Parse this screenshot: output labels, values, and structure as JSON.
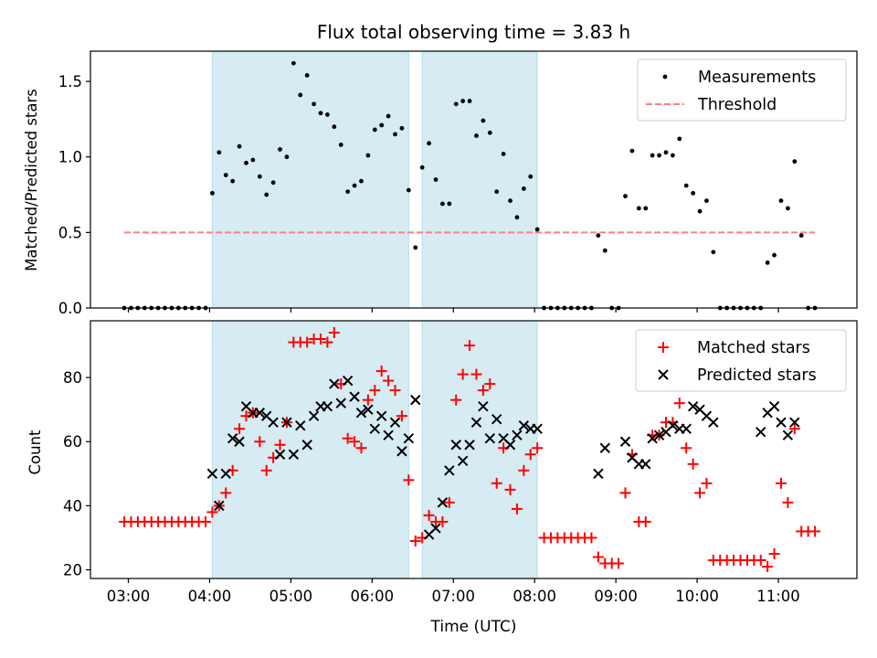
{
  "chart_data": [
    {
      "type": "scatter",
      "title": "Flux total observing time = 3.83 h",
      "xlabel": "",
      "ylabel": "Matched/Predicted stars",
      "xlim": [
        "02:32",
        "11:58"
      ],
      "ylim": [
        0,
        1.7
      ],
      "yticks": [
        "0.0",
        "0.5",
        "1.0",
        "1.5"
      ],
      "grid": false,
      "legend": "top-right",
      "shaded_intervals": [
        [
          "04:02",
          "06:27"
        ],
        [
          "06:37",
          "08:02"
        ]
      ],
      "threshold": {
        "name": "Threshold",
        "value": 0.5,
        "x_range": [
          "02:57",
          "11:27"
        ],
        "color": "#ff7f7f"
      },
      "series": [
        {
          "name": "Measurements",
          "color": "#000000",
          "x": [
            "02:57",
            "03:02",
            "03:07",
            "03:12",
            "03:17",
            "03:22",
            "03:27",
            "03:32",
            "03:37",
            "03:42",
            "03:47",
            "03:52",
            "03:57",
            "04:02",
            "04:07",
            "04:12",
            "04:17",
            "04:22",
            "04:27",
            "04:32",
            "04:37",
            "04:42",
            "04:47",
            "04:52",
            "04:57",
            "05:02",
            "05:07",
            "05:12",
            "05:17",
            "05:22",
            "05:27",
            "05:32",
            "05:37",
            "05:42",
            "05:47",
            "05:52",
            "05:57",
            "06:02",
            "06:07",
            "06:12",
            "06:17",
            "06:22",
            "06:27",
            "06:32",
            "06:37",
            "06:42",
            "06:47",
            "06:52",
            "06:57",
            "07:02",
            "07:07",
            "07:12",
            "07:17",
            "07:22",
            "07:27",
            "07:32",
            "07:37",
            "07:42",
            "07:47",
            "07:52",
            "07:57",
            "08:02",
            "08:07",
            "08:12",
            "08:17",
            "08:22",
            "08:27",
            "08:32",
            "08:37",
            "08:42",
            "08:47",
            "08:52",
            "08:57",
            "09:02",
            "09:07",
            "09:12",
            "09:17",
            "09:22",
            "09:27",
            "09:32",
            "09:37",
            "09:42",
            "09:47",
            "09:52",
            "09:57",
            "10:02",
            "10:07",
            "10:12",
            "10:17",
            "10:22",
            "10:27",
            "10:32",
            "10:37",
            "10:42",
            "10:47",
            "10:52",
            "10:57",
            "11:02",
            "11:07",
            "11:12",
            "11:17",
            "11:22",
            "11:27"
          ],
          "y": [
            0,
            0,
            0,
            0,
            0,
            0,
            0,
            0,
            0,
            0,
            0,
            0,
            0,
            0.76,
            1.03,
            0.88,
            0.84,
            1.07,
            0.96,
            0.98,
            0.87,
            0.75,
            0.83,
            1.05,
            1.0,
            1.62,
            1.41,
            1.54,
            1.35,
            1.29,
            1.28,
            1.2,
            1.08,
            0.77,
            0.81,
            0.84,
            1.01,
            1.18,
            1.21,
            1.27,
            1.15,
            1.19,
            0.78,
            0.4,
            0.93,
            1.09,
            0.85,
            0.69,
            0.69,
            1.35,
            1.37,
            1.37,
            1.14,
            1.24,
            1.16,
            0.77,
            1.02,
            0.71,
            0.6,
            0.79,
            0.87,
            0.52,
            0,
            0,
            0,
            0,
            0,
            0,
            0,
            0,
            0.48,
            0.38,
            0,
            0,
            0.74,
            1.04,
            0.66,
            0.66,
            1.01,
            1.01,
            1.03,
            1.01,
            1.12,
            0.81,
            0.76,
            0.64,
            0.71,
            0.37,
            0,
            0,
            0,
            0,
            0,
            0,
            0,
            0.3,
            0.35,
            0.71,
            0.66,
            0.97,
            0.48,
            0,
            0
          ]
        }
      ]
    },
    {
      "type": "scatter",
      "title": "",
      "xlabel": "Time (UTC)",
      "ylabel": "Count",
      "xlim": [
        "02:32",
        "11:58"
      ],
      "ylim": [
        17.3,
        97.7
      ],
      "xticks": [
        "03:00",
        "04:00",
        "05:00",
        "06:00",
        "07:00",
        "08:00",
        "09:00",
        "10:00",
        "11:00"
      ],
      "yticks": [
        "20",
        "40",
        "60",
        "80"
      ],
      "grid": false,
      "legend": "top-right",
      "shaded_intervals": [
        [
          "04:02",
          "06:27"
        ],
        [
          "06:37",
          "08:02"
        ]
      ],
      "series": [
        {
          "name": "Matched stars",
          "marker": "+",
          "color": "#ff0000",
          "x": [
            "02:57",
            "03:02",
            "03:07",
            "03:12",
            "03:17",
            "03:22",
            "03:27",
            "03:32",
            "03:37",
            "03:42",
            "03:47",
            "03:52",
            "03:57",
            "04:02",
            "04:07",
            "04:12",
            "04:17",
            "04:22",
            "04:27",
            "04:32",
            "04:37",
            "04:42",
            "04:47",
            "04:52",
            "04:57",
            "05:02",
            "05:07",
            "05:12",
            "05:17",
            "05:22",
            "05:27",
            "05:32",
            "05:37",
            "05:42",
            "05:47",
            "05:52",
            "05:57",
            "06:02",
            "06:07",
            "06:12",
            "06:17",
            "06:22",
            "06:27",
            "06:32",
            "06:37",
            "06:42",
            "06:47",
            "06:52",
            "06:57",
            "07:02",
            "07:07",
            "07:12",
            "07:17",
            "07:22",
            "07:27",
            "07:32",
            "07:37",
            "07:42",
            "07:47",
            "07:52",
            "07:57",
            "08:02",
            "08:07",
            "08:12",
            "08:17",
            "08:22",
            "08:27",
            "08:32",
            "08:37",
            "08:42",
            "08:47",
            "08:52",
            "08:57",
            "09:02",
            "09:07",
            "09:12",
            "09:17",
            "09:22",
            "09:27",
            "09:32",
            "09:37",
            "09:42",
            "09:47",
            "09:52",
            "09:57",
            "10:02",
            "10:07",
            "10:12",
            "10:17",
            "10:22",
            "10:27",
            "10:32",
            "10:37",
            "10:42",
            "10:47",
            "10:52",
            "10:57",
            "11:02",
            "11:07",
            "11:12",
            "11:17",
            "11:22",
            "11:27"
          ],
          "y": [
            35,
            35,
            35,
            35,
            35,
            35,
            35,
            35,
            35,
            35,
            35,
            35,
            35,
            38,
            40,
            44,
            51,
            64,
            68,
            69,
            60,
            51,
            55,
            59,
            66,
            91,
            91,
            91,
            92,
            92,
            91,
            94,
            78,
            61,
            60,
            58,
            73,
            76,
            82,
            79,
            76,
            68,
            48,
            29,
            30,
            37,
            35,
            35,
            41,
            73,
            81,
            90,
            81,
            76,
            78,
            47,
            58,
            45,
            39,
            51,
            56,
            58,
            30,
            30,
            30,
            30,
            30,
            30,
            30,
            30,
            24,
            22,
            22,
            22,
            44,
            56,
            35,
            35,
            62,
            62,
            66,
            66,
            72,
            58,
            53,
            44,
            47,
            23,
            23,
            23,
            23,
            23,
            23,
            23,
            23,
            21,
            25,
            47,
            41,
            64,
            32,
            32,
            32
          ]
        },
        {
          "name": "Predicted stars",
          "marker": "x",
          "color": "#000000",
          "x": [
            "04:02",
            "04:07",
            "04:12",
            "04:17",
            "04:22",
            "04:27",
            "04:32",
            "04:37",
            "04:42",
            "04:47",
            "04:52",
            "04:57",
            "05:02",
            "05:07",
            "05:12",
            "05:17",
            "05:22",
            "05:27",
            "05:32",
            "05:37",
            "05:42",
            "05:47",
            "05:52",
            "05:57",
            "06:02",
            "06:07",
            "06:12",
            "06:17",
            "06:22",
            "06:27",
            "06:32",
            "06:42",
            "06:47",
            "06:52",
            "06:57",
            "07:02",
            "07:07",
            "07:12",
            "07:17",
            "07:22",
            "07:27",
            "07:32",
            "07:37",
            "07:42",
            "07:47",
            "07:52",
            "07:57",
            "08:02",
            "08:47",
            "08:52",
            "09:07",
            "09:12",
            "09:17",
            "09:22",
            "09:27",
            "09:32",
            "09:37",
            "09:42",
            "09:47",
            "09:52",
            "09:57",
            "10:02",
            "10:07",
            "10:12",
            "10:47",
            "10:52",
            "10:57",
            "11:02",
            "11:07",
            "11:12"
          ],
          "y": [
            50,
            40,
            50,
            61,
            60,
            71,
            69,
            69,
            68,
            66,
            56,
            66,
            56,
            65,
            59,
            68,
            71,
            71,
            78,
            72,
            79,
            74,
            69,
            70,
            64,
            68,
            62,
            66,
            57,
            61,
            73,
            31,
            33,
            41,
            51,
            59,
            54,
            59,
            66,
            71,
            61,
            67,
            61,
            59,
            62,
            65,
            64,
            64,
            50,
            58,
            60,
            55,
            53,
            53,
            61,
            62,
            63,
            65,
            64,
            64,
            71,
            70,
            68,
            66,
            63,
            69,
            71,
            66,
            62,
            66
          ]
        }
      ]
    }
  ]
}
